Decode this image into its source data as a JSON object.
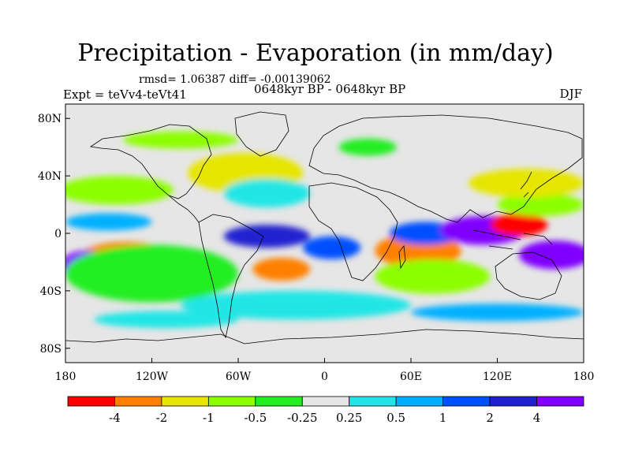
{
  "header": {
    "title": "Precipitation - Evaporation (in mm/day)",
    "stats": "rmsd= 1.06387 diff= -0.00139062",
    "experiment": "Expt = teVv4-teVt41",
    "period": "0648kyr BP - 0648kyr BP",
    "season": "DJF"
  },
  "axes": {
    "lat_labels": [
      "80N",
      "40N",
      "0",
      "40S",
      "80S"
    ],
    "lat_values": [
      80,
      40,
      0,
      -40,
      -80
    ],
    "lon_labels": [
      "180",
      "120W",
      "60W",
      "0",
      "60E",
      "120E",
      "180"
    ],
    "lon_values": [
      -180,
      -120,
      -60,
      0,
      60,
      120,
      180
    ],
    "lon_range": [
      -180,
      180
    ],
    "lat_range": [
      -90,
      90
    ]
  },
  "colorbar": {
    "labels": [
      "-4",
      "-2",
      "-1",
      "-0.5",
      "-0.25",
      "0.25",
      "0.5",
      "1",
      "2",
      "4"
    ],
    "colors": [
      "#ff0000",
      "#ff8000",
      "#e6e600",
      "#8cff00",
      "#22ee22",
      "#e6e6e6",
      "#22e6e6",
      "#00b0ff",
      "#0050ff",
      "#2020d0",
      "#8000ff"
    ]
  },
  "field": {
    "background_color": "#e6e6e6",
    "anomalies": [
      {
        "lon": -140,
        "lat": -18,
        "rx": 20,
        "ry": 8,
        "color": "#ff0000"
      },
      {
        "lon": -138,
        "lat": -20,
        "rx": 36,
        "ry": 14,
        "color": "#ff8000"
      },
      {
        "lon": -165,
        "lat": -22,
        "rx": 18,
        "ry": 10,
        "color": "#8000ff"
      },
      {
        "lon": -120,
        "lat": -28,
        "rx": 60,
        "ry": 20,
        "color": "#22ee22"
      },
      {
        "lon": -145,
        "lat": 30,
        "rx": 40,
        "ry": 10,
        "color": "#8cff00"
      },
      {
        "lon": -150,
        "lat": 8,
        "rx": 30,
        "ry": 6,
        "color": "#00b0ff"
      },
      {
        "lon": -60,
        "lat": 38,
        "rx": 22,
        "ry": 8,
        "color": "#ff0000"
      },
      {
        "lon": -55,
        "lat": 42,
        "rx": 40,
        "ry": 14,
        "color": "#e6e600"
      },
      {
        "lon": -40,
        "lat": 28,
        "rx": 30,
        "ry": 10,
        "color": "#22e6e6"
      },
      {
        "lon": -40,
        "lat": -2,
        "rx": 30,
        "ry": 8,
        "color": "#2020d0"
      },
      {
        "lon": -30,
        "lat": -25,
        "rx": 20,
        "ry": 8,
        "color": "#ff8000"
      },
      {
        "lon": -20,
        "lat": -50,
        "rx": 80,
        "ry": 10,
        "color": "#22e6e6"
      },
      {
        "lon": 5,
        "lat": -10,
        "rx": 20,
        "ry": 8,
        "color": "#0050ff"
      },
      {
        "lon": 65,
        "lat": -12,
        "rx": 30,
        "ry": 12,
        "color": "#ff8000"
      },
      {
        "lon": 75,
        "lat": -30,
        "rx": 40,
        "ry": 12,
        "color": "#8cff00"
      },
      {
        "lon": 70,
        "lat": 0,
        "rx": 25,
        "ry": 8,
        "color": "#0050ff"
      },
      {
        "lon": 110,
        "lat": 2,
        "rx": 30,
        "ry": 10,
        "color": "#8000ff"
      },
      {
        "lon": 135,
        "lat": 6,
        "rx": 20,
        "ry": 8,
        "color": "#ff0000"
      },
      {
        "lon": 150,
        "lat": 20,
        "rx": 30,
        "ry": 8,
        "color": "#8cff00"
      },
      {
        "lon": 160,
        "lat": -15,
        "rx": 25,
        "ry": 10,
        "color": "#8000ff"
      },
      {
        "lon": 140,
        "lat": 35,
        "rx": 40,
        "ry": 10,
        "color": "#e6e600"
      },
      {
        "lon": 30,
        "lat": 60,
        "rx": 20,
        "ry": 6,
        "color": "#22ee22"
      },
      {
        "lon": -100,
        "lat": 65,
        "rx": 40,
        "ry": 6,
        "color": "#8cff00"
      },
      {
        "lon": -110,
        "lat": -60,
        "rx": 50,
        "ry": 6,
        "color": "#22e6e6"
      },
      {
        "lon": 120,
        "lat": -55,
        "rx": 60,
        "ry": 6,
        "color": "#00b0ff"
      }
    ]
  }
}
